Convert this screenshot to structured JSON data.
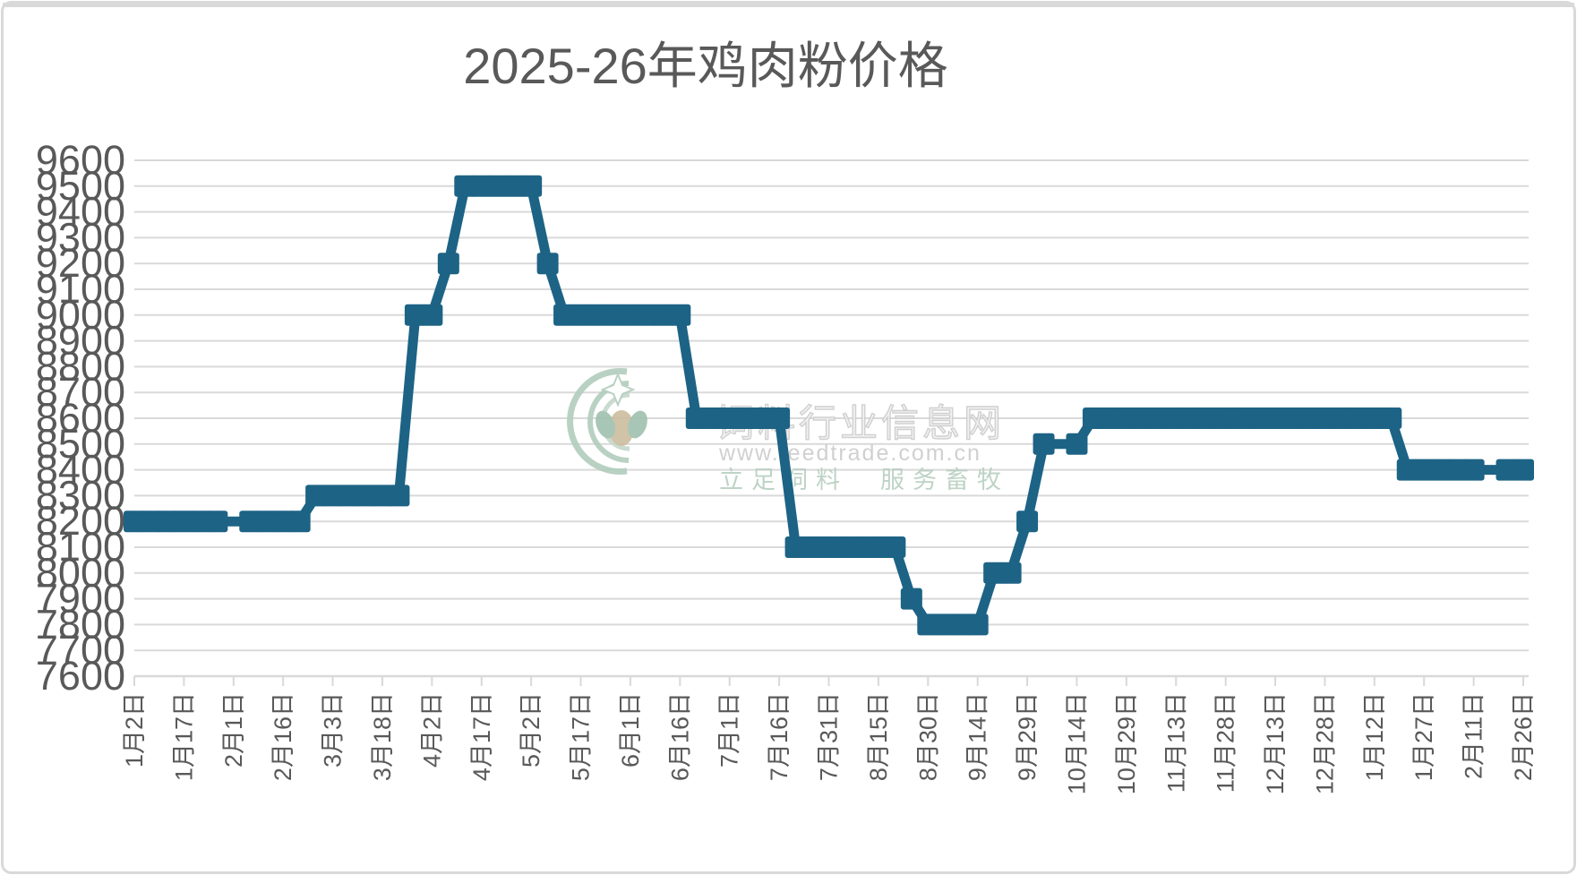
{
  "title": "2025-26年鸡肉粉价格",
  "watermark": {
    "line1": "饲料行业信息网",
    "line2": "www.feedtrade.com.cn",
    "line3": "立足饲料　服务畜牧"
  },
  "colors": {
    "series": "#1d6385",
    "grid": "#d9d9d9",
    "axis": "#d9d9d9",
    "text": "#595959",
    "watermark_green": "#b2cdbd",
    "watermark_gray": "#cccccc",
    "border": "#d9d9d9"
  },
  "y_axis": {
    "tick_labels": [
      "9600",
      "9500",
      "9400",
      "9300",
      "9200",
      "9100",
      "9000",
      "8900",
      "8800",
      "8700",
      "8600",
      "8500",
      "8400",
      "8300",
      "8200",
      "8100",
      "8000",
      "7900",
      "7800",
      "7700",
      "7600"
    ]
  },
  "x_axis": {
    "tick_labels": [
      "1月2日",
      "1月17日",
      "2月1日",
      "2月16日",
      "3月3日",
      "3月18日",
      "4月2日",
      "4月17日",
      "5月2日",
      "5月17日",
      "6月1日",
      "6月16日",
      "7月1日",
      "7月16日",
      "7月31日",
      "8月15日",
      "8月30日",
      "9月14日",
      "9月29日",
      "10月14日",
      "10月29日",
      "11月13日",
      "11月28日",
      "12月13日",
      "12月28日",
      "1月12日",
      "1月27日",
      "2月11日",
      "2月26日"
    ]
  },
  "chart_data": {
    "type": "line",
    "title": "2025-26年鸡肉粉价格",
    "xlabel": "",
    "ylabel": "",
    "ylim": [
      7600,
      9600
    ],
    "ytick_step": 100,
    "grid": true,
    "legend_position": "none",
    "marker": "square",
    "line_color": "#1d6385",
    "x_label_every": 3,
    "x": [
      "1月2日",
      "1月7日",
      "1月12日",
      "1月17日",
      "1月22日",
      "1月27日",
      "2月1日",
      "2月6日",
      "2月11日",
      "2月16日",
      "2月21日",
      "2月26日",
      "3月3日",
      "3月8日",
      "3月13日",
      "3月18日",
      "3月23日",
      "3月28日",
      "4月2日",
      "4月7日",
      "4月12日",
      "4月17日",
      "4月22日",
      "4月27日",
      "5月2日",
      "5月7日",
      "5月12日",
      "5月17日",
      "5月22日",
      "5月27日",
      "6月1日",
      "6月6日",
      "6月11日",
      "6月16日",
      "6月21日",
      "6月26日",
      "7月1日",
      "7月6日",
      "7月11日",
      "7月16日",
      "7月21日",
      "7月26日",
      "7月31日",
      "8月5日",
      "8月10日",
      "8月15日",
      "8月20日",
      "8月25日",
      "8月30日",
      "9月4日",
      "9月9日",
      "9月14日",
      "9月19日",
      "9月24日",
      "9月29日",
      "10月4日",
      "10月9日",
      "10月14日",
      "10月19日",
      "10月24日",
      "10月29日",
      "11月3日",
      "11月8日",
      "11月13日",
      "11月18日",
      "11月23日",
      "11月28日",
      "12月3日",
      "12月8日",
      "12月13日",
      "12月18日",
      "12月23日",
      "12月28日",
      "1月2日",
      "1月7日",
      "1月12日",
      "1月17日",
      "1月22日",
      "1月27日",
      "2月1日",
      "2月6日",
      "2月11日",
      "2月16日",
      "2月21日",
      "2月26日"
    ],
    "values": [
      8200,
      8200,
      8200,
      8200,
      8200,
      8200,
      8200,
      8200,
      8200,
      8200,
      8200,
      8300,
      8300,
      8300,
      8300,
      8300,
      8300,
      9000,
      9000,
      9200,
      9500,
      9500,
      9500,
      9500,
      9500,
      9200,
      9000,
      9000,
      9000,
      9000,
      9000,
      9000,
      9000,
      9000,
      8600,
      8600,
      8600,
      8600,
      8600,
      8600,
      8100,
      8100,
      8100,
      8100,
      8100,
      8100,
      8100,
      7900,
      7800,
      7800,
      7800,
      7800,
      8000,
      8000,
      8200,
      8500,
      8500,
      8500,
      8600,
      8600,
      8600,
      8600,
      8600,
      8600,
      8600,
      8600,
      8600,
      8600,
      8600,
      8600,
      8600,
      8600,
      8600,
      8600,
      8600,
      8600,
      8600,
      8400,
      8400,
      8400,
      8400,
      8400,
      8400,
      8400,
      8400
    ],
    "gap_indices": [
      6,
      56,
      82
    ]
  }
}
